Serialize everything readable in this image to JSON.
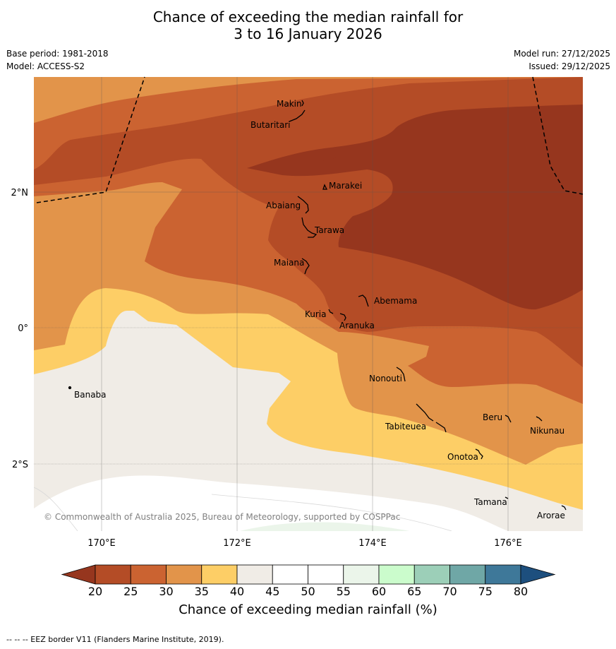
{
  "title_line1": "Chance of exceeding the median rainfall for",
  "title_line2": "3 to 16 January 2026",
  "base_period": "Base period: 1981-2018",
  "model": "Model: ACCESS-S2",
  "model_run": "Model run: 27/12/2025",
  "issued": "Issued: 29/12/2025",
  "copyright": "© Commonwealth of Australia 2025, Bureau of Meteorology, supported by COSPPac",
  "axes": {
    "lat_labels": [
      "2°N",
      "0°",
      "2°S"
    ],
    "lon_labels": [
      "170°E",
      "172°E",
      "174°E",
      "176°E"
    ]
  },
  "places": [
    "Makin",
    "Butaritari",
    "Marakei",
    "Abaiang",
    "Tarawa",
    "Maiana",
    "Abemama",
    "Kuria",
    "Aranuka",
    "Banaba",
    "Nonouti",
    "Tabiteuea",
    "Beru",
    "Nikunau",
    "Onotoa",
    "Tamana",
    "Arorae"
  ],
  "colorbar": {
    "ticks": [
      "20",
      "25",
      "30",
      "35",
      "40",
      "45",
      "50",
      "55",
      "60",
      "65",
      "70",
      "75",
      "80"
    ],
    "colors": [
      "#b44c26",
      "#cb6331",
      "#e2944a",
      "#fdce66",
      "#f0ece6",
      "#ffffff",
      "#ffffff",
      "#ebf5ea",
      "#cbfccc",
      "#9ccfb8",
      "#6fa7a6",
      "#3e7899"
    ],
    "low_color": "#96361e",
    "high_color": "#1d4f7e",
    "title": "Chance of exceeding median rainfall (%)"
  },
  "footnote": "--  --  -- EEZ border V11 (Flanders Marine Institute, 2019)."
}
